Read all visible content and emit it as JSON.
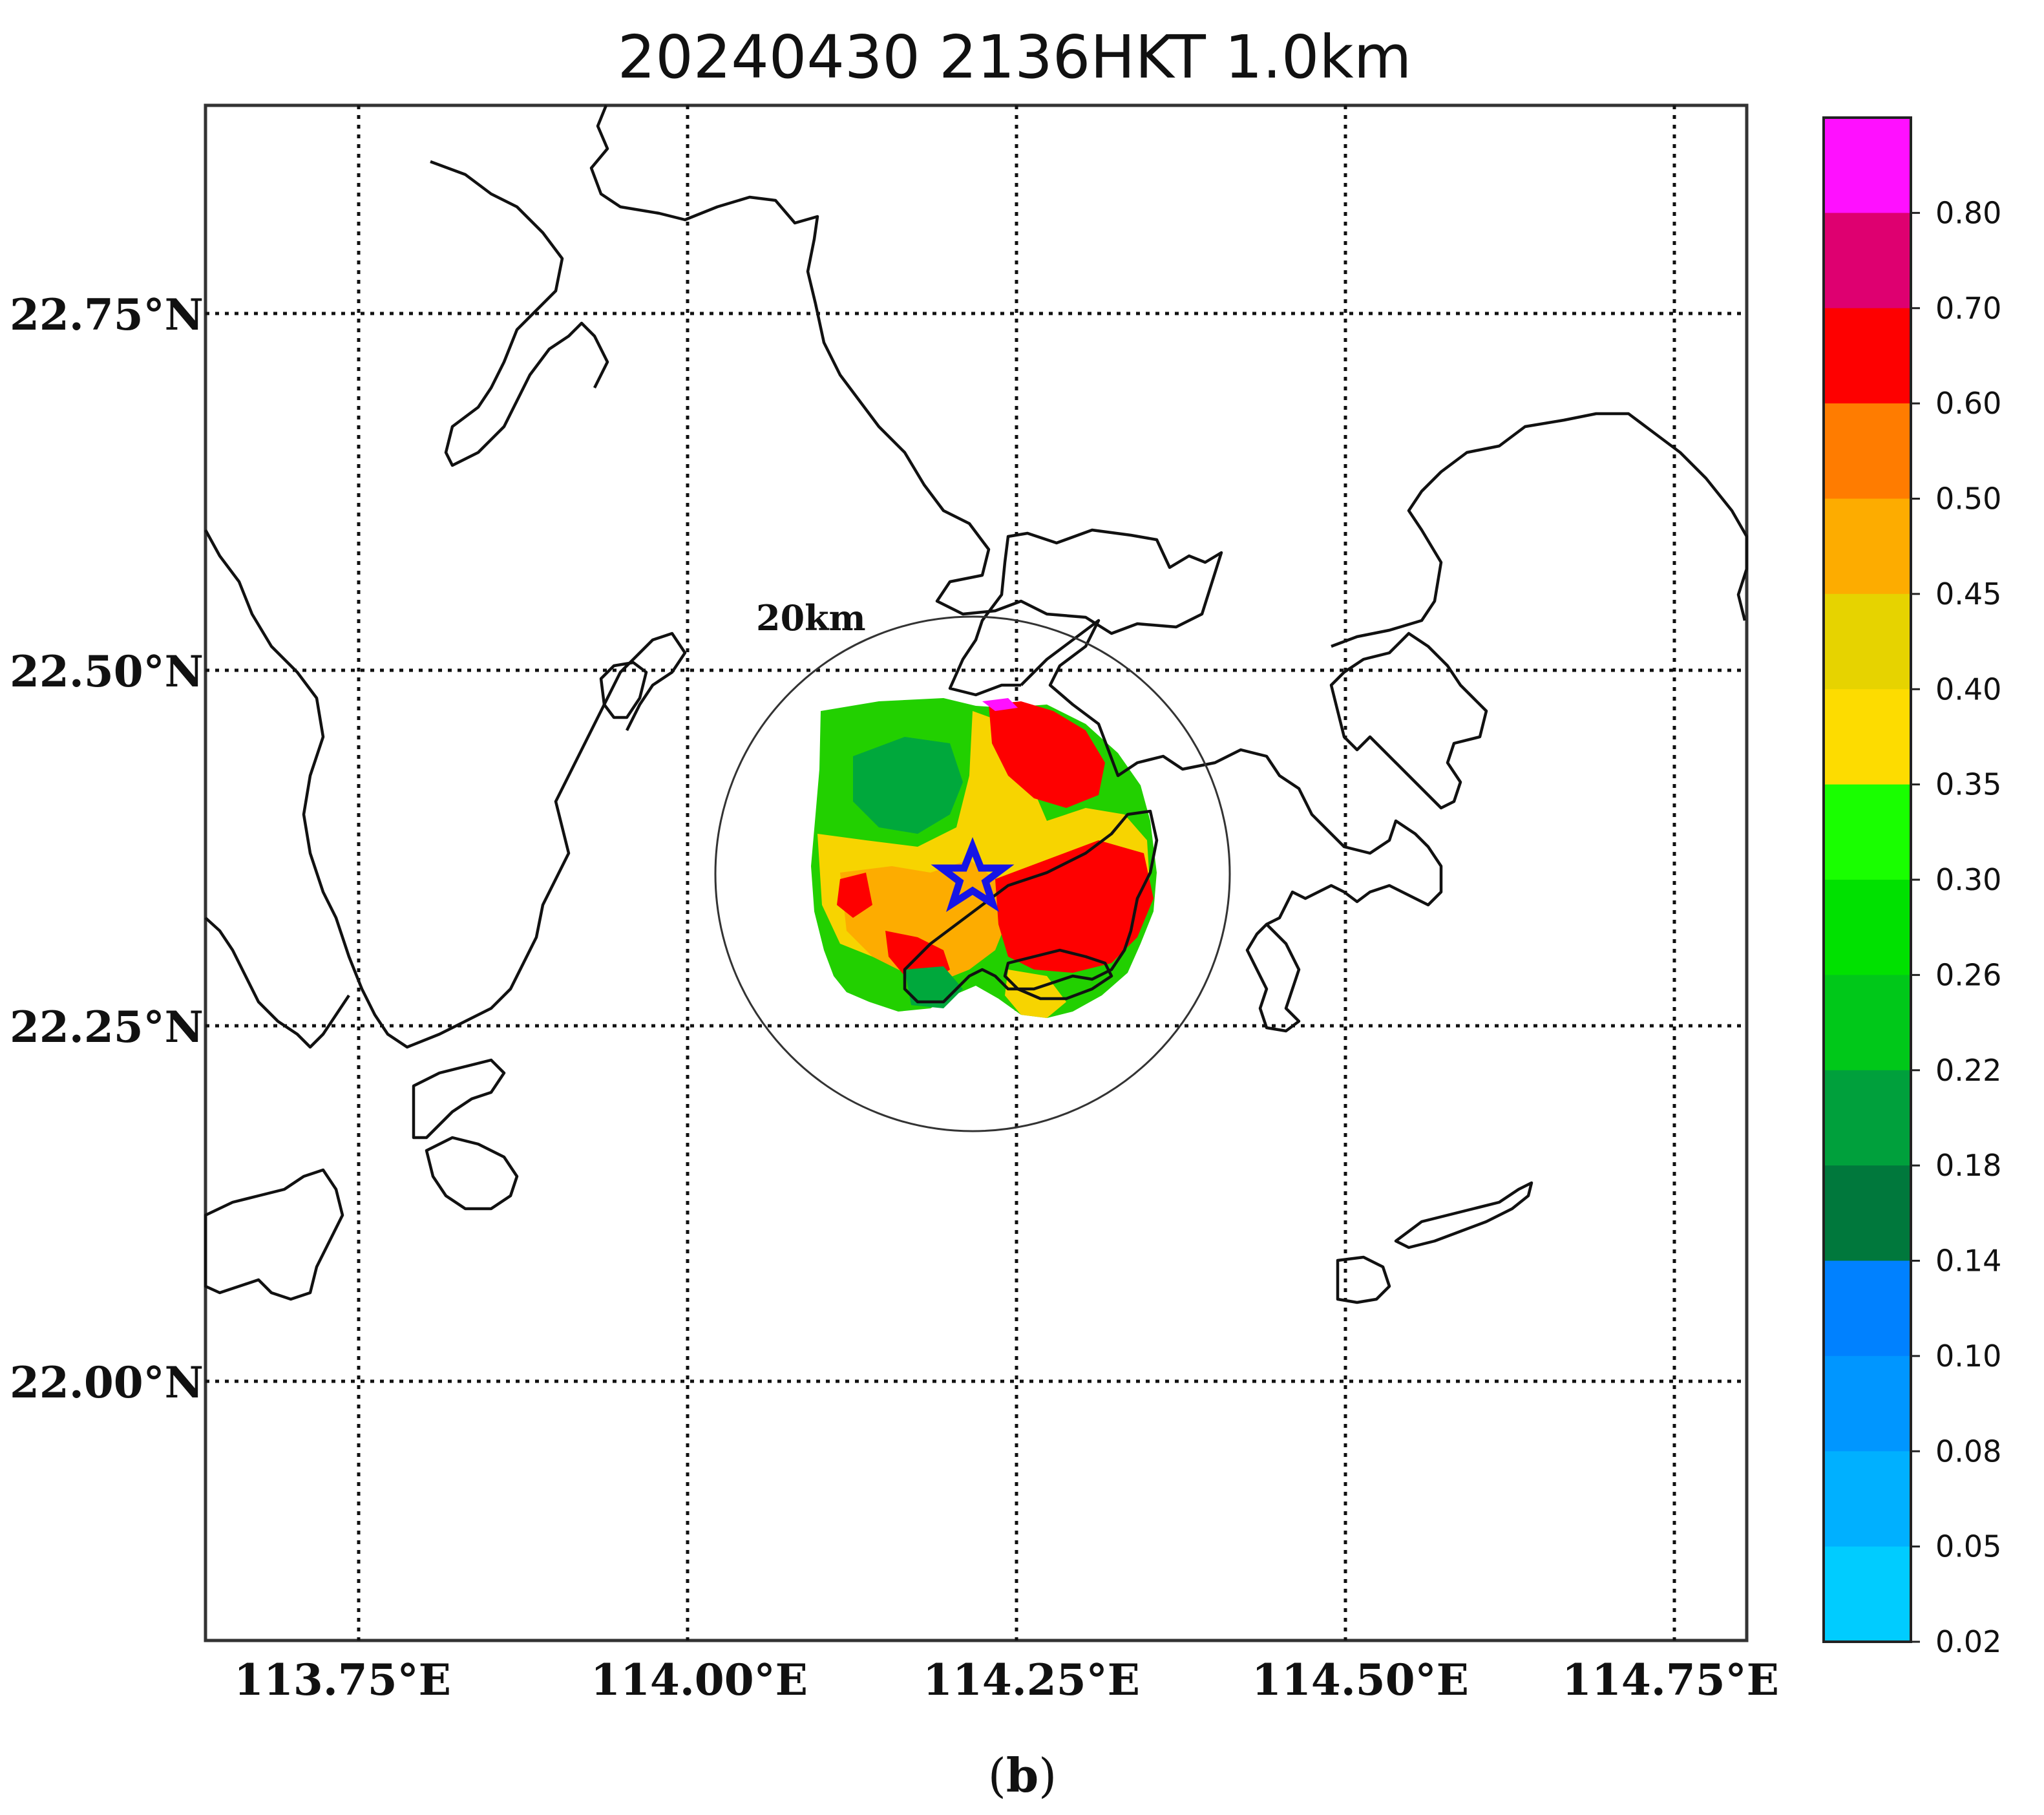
{
  "title": "20240430 2136HKT 1.0km",
  "panel_label": "b",
  "ring_label": "20km",
  "lat_ticks": [
    "22.75°N",
    "22.50°N",
    "22.25°N",
    "22.00°N"
  ],
  "lon_ticks": [
    "113.75°E",
    "114.00°E",
    "114.25°E",
    "114.50°E",
    "114.75°E"
  ],
  "colorbar": {
    "labels": [
      "0.80",
      "0.70",
      "0.60",
      "0.50",
      "0.45",
      "0.40",
      "0.35",
      "0.30",
      "0.26",
      "0.22",
      "0.18",
      "0.14",
      "0.10",
      "0.08",
      "0.05",
      "0.02"
    ],
    "colors_top_to_bottom": [
      "#ff10ff",
      "#de0070",
      "#fe0000",
      "#ff7c00",
      "#fdac00",
      "#e6d300",
      "#fddc00",
      "#19ff00",
      "#00e100",
      "#00c819",
      "#00a03c",
      "#00783c",
      "#0081ff",
      "#0096ff",
      "#00b0ff",
      "#00ccff"
    ]
  },
  "map": {
    "extent": {
      "lon": [
        113.6,
        114.8
      ],
      "lat": [
        21.8,
        22.9
      ]
    },
    "radar_site": {
      "lon": 114.22,
      "lat": 22.35
    },
    "ring_radius_km": 20,
    "marker": "blue star"
  }
}
